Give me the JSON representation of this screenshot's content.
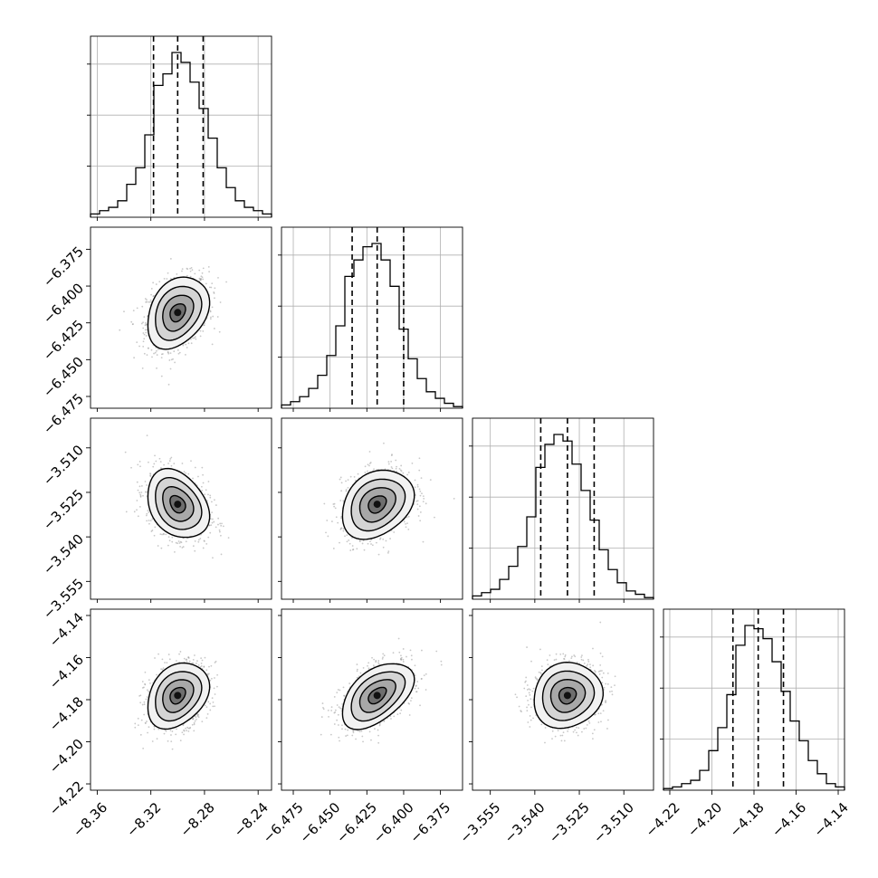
{
  "chart_data": {
    "type": "corner",
    "variables": [
      {
        "range": [
          -8.365,
          -8.23
        ],
        "ticks": [
          -8.36,
          -8.32,
          -8.28,
          -8.24
        ],
        "tick_labels": [
          "−8.36",
          "−8.32",
          "−8.28",
          "−8.24"
        ],
        "median": -8.3,
        "lower": -8.318,
        "upper": -8.281,
        "hist": [
          0.02,
          0.04,
          0.06,
          0.1,
          0.2,
          0.3,
          0.5,
          0.8,
          0.87,
          1.0,
          0.94,
          0.82,
          0.66,
          0.48,
          0.3,
          0.18,
          0.1,
          0.06,
          0.04,
          0.02
        ]
      },
      {
        "range": [
          -6.483,
          -6.36
        ],
        "ticks": [
          -6.475,
          -6.45,
          -6.425,
          -6.4,
          -6.375
        ],
        "tick_labels": [
          "−6.475",
          "−6.450",
          "−6.425",
          "−6.400",
          "−6.375"
        ],
        "median": -6.418,
        "lower": -6.435,
        "upper": -6.4,
        "hist": [
          0.02,
          0.04,
          0.07,
          0.12,
          0.2,
          0.32,
          0.5,
          0.8,
          0.9,
          0.98,
          1.0,
          0.9,
          0.74,
          0.48,
          0.3,
          0.18,
          0.1,
          0.06,
          0.03,
          0.01
        ]
      },
      {
        "range": [
          -3.561,
          -3.5
        ],
        "ticks": [
          -3.555,
          -3.54,
          -3.525,
          -3.51
        ],
        "tick_labels": [
          "−3.555",
          "−3.540",
          "−3.525",
          "−3.510"
        ],
        "median": -3.529,
        "lower": -3.538,
        "upper": -3.52,
        "hist": [
          0.02,
          0.04,
          0.06,
          0.12,
          0.2,
          0.32,
          0.5,
          0.8,
          0.94,
          1.0,
          0.96,
          0.82,
          0.66,
          0.48,
          0.3,
          0.18,
          0.1,
          0.05,
          0.03,
          0.01
        ]
      },
      {
        "range": [
          -4.223,
          -4.137
        ],
        "ticks": [
          -4.22,
          -4.2,
          -4.18,
          -4.16,
          -4.14
        ],
        "tick_labels": [
          "−4.22",
          "−4.20",
          "−4.18",
          "−4.16",
          "−4.14"
        ],
        "median": -4.178,
        "lower": -4.19,
        "upper": -4.166,
        "hist": [
          0.01,
          0.02,
          0.04,
          0.06,
          0.12,
          0.24,
          0.38,
          0.58,
          0.88,
          1.0,
          0.98,
          0.92,
          0.78,
          0.6,
          0.42,
          0.3,
          0.18,
          0.1,
          0.04,
          0.02
        ]
      }
    ],
    "pairs": [
      {
        "x": 0,
        "y": 1,
        "cx": -8.3,
        "cy": -6.418,
        "sx": 0.0115,
        "sy": 0.0122,
        "rho": 0.3
      },
      {
        "x": 0,
        "y": 2,
        "cx": -8.3,
        "cy": -3.529,
        "sx": 0.0115,
        "sy": 0.0058,
        "rho": -0.3
      },
      {
        "x": 1,
        "y": 2,
        "cx": -6.418,
        "cy": -3.529,
        "sx": 0.0122,
        "sy": 0.0058,
        "rho": 0.28
      },
      {
        "x": 0,
        "y": 3,
        "cx": -8.3,
        "cy": -4.178,
        "sx": 0.0115,
        "sy": 0.0078,
        "rho": 0.3
      },
      {
        "x": 1,
        "y": 3,
        "cx": -6.418,
        "cy": -4.178,
        "sx": 0.0122,
        "sy": 0.0078,
        "rho": 0.5
      },
      {
        "x": 2,
        "y": 3,
        "cx": -3.529,
        "cy": -4.178,
        "sx": 0.0058,
        "sy": 0.0078,
        "rho": 0.1
      }
    ],
    "contour_levels_sigma": [
      0.5,
      1.0,
      1.5,
      2.0
    ],
    "grid": true,
    "line_color": "#000000",
    "point_color": "#9a9a9a",
    "grid_color": "#b0b0b0"
  }
}
